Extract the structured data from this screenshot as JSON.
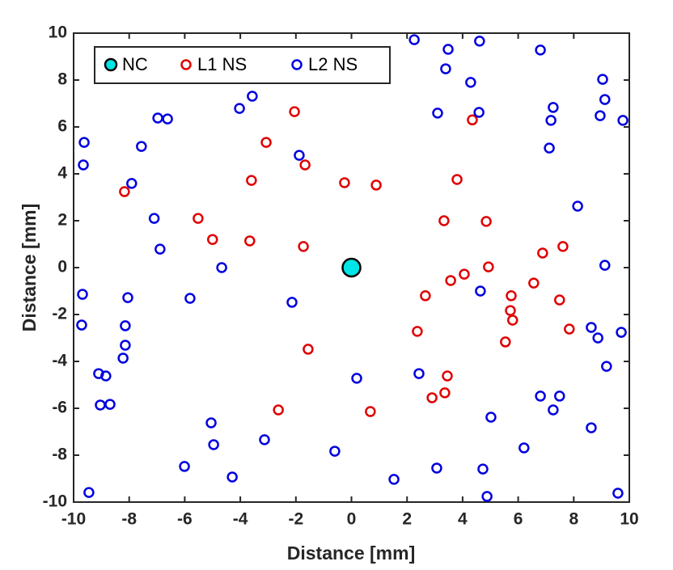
{
  "chart_data": {
    "type": "scatter",
    "xlabel": "Distance [mm]",
    "ylabel": "Distance [mm]",
    "xlim": [
      -10,
      10
    ],
    "ylim": [
      -10,
      10
    ],
    "xticks": [
      -10,
      -8,
      -6,
      -4,
      -2,
      0,
      2,
      4,
      6,
      8,
      10
    ],
    "yticks": [
      -10,
      -8,
      -6,
      -4,
      -2,
      0,
      2,
      4,
      6,
      8,
      10
    ],
    "legend": "top-left",
    "series": [
      {
        "name": "NC",
        "color": "#000000",
        "fill": "#00e5e5",
        "x": [
          0
        ],
        "y": [
          0
        ]
      },
      {
        "name": "L1 NS",
        "color": "#e00000",
        "fill": "none",
        "x": [
          -2.05,
          -3.07,
          -1.67,
          -3.6,
          -0.25,
          0.89,
          3.8,
          4.35,
          -8.17,
          -5.52,
          -5.0,
          -3.66,
          -1.73,
          3.33,
          4.85,
          4.93,
          7.61,
          6.88,
          4.06,
          3.57,
          6.56,
          2.66,
          5.75,
          7.49,
          5.72,
          5.8,
          7.84,
          2.37,
          5.54,
          -1.56,
          3.45,
          3.36,
          2.9,
          -2.63,
          0.68
        ],
        "y": [
          6.65,
          5.34,
          4.38,
          3.72,
          3.62,
          3.52,
          3.76,
          6.3,
          3.24,
          2.1,
          1.2,
          1.14,
          0.9,
          2.0,
          1.97,
          0.03,
          0.9,
          0.62,
          -0.28,
          -0.55,
          -0.66,
          -1.2,
          -1.2,
          -1.38,
          -1.83,
          -2.24,
          -2.62,
          -2.72,
          -3.17,
          -3.48,
          -4.62,
          -5.34,
          -5.55,
          -6.07,
          -6.14
        ]
      },
      {
        "name": "L2 NS",
        "color": "#0000e0",
        "fill": "none",
        "x": [
          2.26,
          3.48,
          4.61,
          6.8,
          3.39,
          4.29,
          9.04,
          9.12,
          -3.57,
          -4.03,
          3.1,
          4.59,
          7.26,
          7.18,
          8.95,
          9.77,
          -6.97,
          -6.62,
          -9.62,
          -9.65,
          -7.56,
          -1.88,
          7.12,
          -7.91,
          -7.1,
          -6.89,
          -4.67,
          8.14,
          9.12,
          -9.68,
          -8.05,
          -5.81,
          -2.14,
          4.64,
          -9.71,
          -8.14,
          -8.14,
          -8.22,
          8.63,
          8.87,
          9.71,
          9.18,
          -9.1,
          -8.84,
          -9.04,
          -8.69,
          0.19,
          2.43,
          6.8,
          7.49,
          7.26,
          5.02,
          -5.05,
          -4.96,
          -3.13,
          -0.6,
          6.21,
          8.63,
          -6.01,
          -4.29,
          3.07,
          4.73,
          1.53,
          4.88,
          -9.45,
          9.59
        ],
        "y": [
          9.72,
          9.31,
          9.66,
          9.28,
          8.48,
          7.9,
          8.03,
          7.17,
          7.31,
          6.79,
          6.59,
          6.62,
          6.83,
          6.28,
          6.48,
          6.28,
          6.38,
          6.34,
          5.34,
          4.38,
          5.17,
          4.79,
          5.1,
          3.59,
          2.1,
          0.79,
          0.0,
          2.62,
          0.1,
          -1.14,
          -1.28,
          -1.31,
          -1.48,
          -1.0,
          -2.45,
          -2.48,
          -3.31,
          -3.86,
          -2.55,
          -3.0,
          -2.76,
          -4.21,
          -4.52,
          -4.62,
          -5.86,
          -5.83,
          -4.72,
          -4.52,
          -5.48,
          -5.48,
          -6.07,
          -6.38,
          -6.62,
          -7.55,
          -7.34,
          -7.83,
          -7.69,
          -6.83,
          -8.48,
          -8.93,
          -8.55,
          -8.59,
          -9.03,
          -9.76,
          -9.59,
          -9.62
        ]
      }
    ]
  }
}
